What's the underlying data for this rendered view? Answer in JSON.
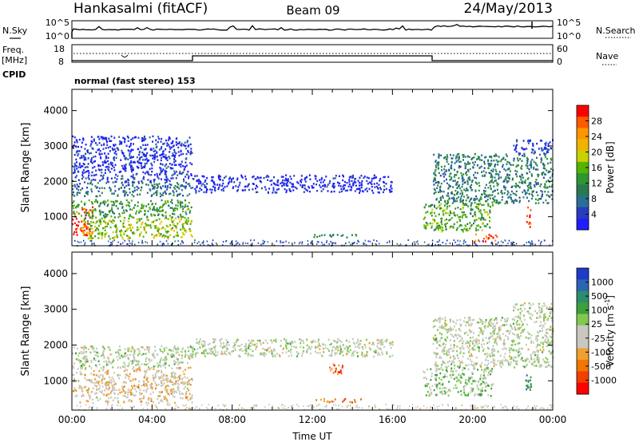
{
  "header": {
    "title": "Hankasalmi (fitACF)",
    "beam": "Beam 09",
    "date": "24/May/2013"
  },
  "top_panel": {
    "nsky_label": "N.Sky",
    "nsearch_label": "N.Search",
    "left_ticks": [
      "10^5",
      "10^0"
    ],
    "right_ticks": [
      "10^5",
      "10^0"
    ],
    "freq_label": "Freq.",
    "freq_unit": "[MHz]",
    "freq_ticks": [
      "18",
      "8"
    ],
    "nave_ticks": [
      "60",
      "0"
    ],
    "nave_label": "Nave",
    "cpid_label": "CPID",
    "cpid_text": "normal (fast stereo) 153"
  },
  "chart_data": [
    {
      "type": "heatmap",
      "name": "power",
      "ylabel": "Slant Range [km]",
      "xlabel": "Time UT",
      "x_ticks": [
        "00:00",
        "04:00",
        "08:00",
        "12:00",
        "16:00",
        "20:00",
        "00:00"
      ],
      "xlim": [
        0,
        24
      ],
      "ylim": [
        180,
        4600
      ],
      "y_ticks": [
        1000,
        2000,
        3000,
        4000
      ],
      "colorbar_label": "Power [dB]",
      "colorbar_ticks": [
        "28",
        "24",
        "20",
        "16",
        "12",
        "8",
        "4"
      ],
      "colorbar_colors": [
        "#ff0000",
        "#ff5a00",
        "#ff9600",
        "#f0b400",
        "#c8d200",
        "#55b400",
        "#2d9632",
        "#287850",
        "#2a6e96",
        "#283cbe",
        "#1e1eff"
      ],
      "scatter_regions": [
        {
          "t0": 0.0,
          "t1": 6.0,
          "r0": 1600,
          "r1": 2000,
          "level": 0.75
        },
        {
          "t0": 0.0,
          "t1": 1.0,
          "r0": 500,
          "r1": 1300,
          "level": 0.1
        },
        {
          "t0": 0.5,
          "t1": 6.0,
          "r0": 400,
          "r1": 1000,
          "level": 0.45
        },
        {
          "t0": 0.0,
          "t1": 6.0,
          "r0": 1000,
          "r1": 1500,
          "level": 0.6
        },
        {
          "t0": 0.0,
          "t1": 6.0,
          "r0": 2000,
          "r1": 3300,
          "level": 0.92
        },
        {
          "t0": 6.0,
          "t1": 16.0,
          "r0": 1700,
          "r1": 2200,
          "level": 0.95
        },
        {
          "t0": 12.0,
          "t1": 14.5,
          "r0": 420,
          "r1": 520,
          "level": 0.65
        },
        {
          "t0": 17.5,
          "t1": 21.0,
          "r0": 600,
          "r1": 1400,
          "level": 0.55
        },
        {
          "t0": 18.0,
          "t1": 24.0,
          "r0": 1400,
          "r1": 2800,
          "level": 0.7
        },
        {
          "t0": 20.0,
          "t1": 21.2,
          "r0": 300,
          "r1": 550,
          "level": 0.1
        },
        {
          "t0": 22.6,
          "t1": 22.9,
          "r0": 700,
          "r1": 1300,
          "level": 0.05
        },
        {
          "t0": 22.0,
          "t1": 24.0,
          "r0": 2800,
          "r1": 3200,
          "level": 0.9
        }
      ]
    },
    {
      "type": "heatmap",
      "name": "velocity",
      "ylabel": "Slant Range [km]",
      "xlabel": "Time UT",
      "x_ticks": [
        "00:00",
        "04:00",
        "08:00",
        "12:00",
        "16:00",
        "20:00",
        "00:00"
      ],
      "xlim": [
        0,
        24
      ],
      "ylim": [
        180,
        4600
      ],
      "y_ticks": [
        1000,
        2000,
        3000,
        4000
      ],
      "colorbar_label": "Velocity [m s",
      "colorbar_unit_sup": "-1",
      "colorbar_unit_close": "]",
      "colorbar_ticks": [
        "1000",
        "500",
        "100",
        "25",
        "-25",
        "-100",
        "-500",
        "-1000"
      ],
      "colorbar_colors": [
        "#1e3cc8",
        "#2a64b4",
        "#2d8c6e",
        "#3ca03c",
        "#82c850",
        "#c8c8c0",
        "#c8c8c0",
        "#f0a030",
        "#f07800",
        "#f04000",
        "#ff0000"
      ],
      "scatter_regions": [
        {
          "t0": 0.0,
          "t1": 6.0,
          "r0": 1400,
          "r1": 2000,
          "level": 0.5
        },
        {
          "t0": 0.0,
          "t1": 6.0,
          "r0": 400,
          "r1": 1400,
          "level": 0.6
        },
        {
          "t0": 6.0,
          "t1": 16.0,
          "r0": 1700,
          "r1": 2200,
          "level": 0.5
        },
        {
          "t0": 12.0,
          "t1": 14.5,
          "r0": 420,
          "r1": 520,
          "level": 0.75
        },
        {
          "t0": 12.8,
          "t1": 13.5,
          "r0": 1200,
          "r1": 1500,
          "level": 0.85
        },
        {
          "t0": 17.5,
          "t1": 21.0,
          "r0": 600,
          "r1": 1400,
          "level": 0.45
        },
        {
          "t0": 18.0,
          "t1": 24.0,
          "r0": 1400,
          "r1": 2800,
          "level": 0.5
        },
        {
          "t0": 22.6,
          "t1": 22.9,
          "r0": 700,
          "r1": 1300,
          "level": 0.3
        },
        {
          "t0": 22.0,
          "t1": 24.0,
          "r0": 2800,
          "r1": 3200,
          "level": 0.5
        }
      ]
    }
  ]
}
